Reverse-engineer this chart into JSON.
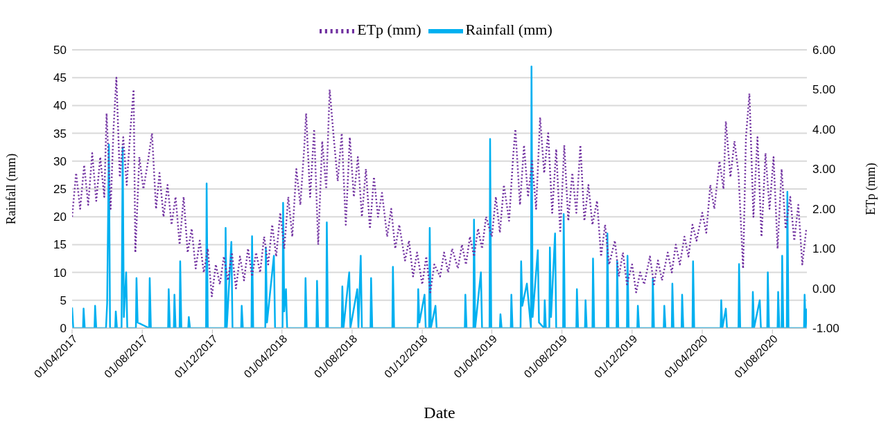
{
  "chart_data": {
    "type": "line",
    "xlabel": "Date",
    "ylabel": "Rainfall (mm)",
    "y2label": "ETp (mm)",
    "xlim": [
      "2017-04-01",
      "2020-09-30"
    ],
    "xticks": [
      {
        "value": "2017-04-01",
        "label": "01/04/2017"
      },
      {
        "value": "2017-08-01",
        "label": "01/08/2017"
      },
      {
        "value": "2017-12-01",
        "label": "01/12/2017"
      },
      {
        "value": "2018-04-01",
        "label": "01/04/2018"
      },
      {
        "value": "2018-08-01",
        "label": "01/08/2018"
      },
      {
        "value": "2018-12-01",
        "label": "01/12/2018"
      },
      {
        "value": "2019-04-01",
        "label": "01/04/2019"
      },
      {
        "value": "2019-08-01",
        "label": "01/08/2019"
      },
      {
        "value": "2019-12-01",
        "label": "01/12/2019"
      },
      {
        "value": "2020-04-01",
        "label": "01/04/2020"
      },
      {
        "value": "2020-08-01",
        "label": "01/08/2020"
      }
    ],
    "ylim": [
      0,
      50
    ],
    "yticks": [
      0,
      5,
      10,
      15,
      20,
      25,
      30,
      35,
      40,
      45,
      50
    ],
    "y2lim": [
      -1,
      6
    ],
    "y2ticks": [
      {
        "value": -1,
        "label": "-1.00"
      },
      {
        "value": 0,
        "label": "0.00"
      },
      {
        "value": 1,
        "label": "1.00"
      },
      {
        "value": 2,
        "label": "2.00"
      },
      {
        "value": 3,
        "label": "3.00"
      },
      {
        "value": 4,
        "label": "4.00"
      },
      {
        "value": 5,
        "label": "5.00"
      },
      {
        "value": 6,
        "label": "6.00"
      }
    ],
    "grid": "y",
    "legend": "top",
    "marker": "none",
    "series": [
      {
        "name": "Rainfall (mm)",
        "color": "#00b0f0",
        "line_style": "solid",
        "x": [
          "2017-04-01",
          "2017-04-03",
          "2017-04-20",
          "2017-04-21",
          "2017-04-23",
          "2017-05-10",
          "2017-05-11",
          "2017-05-13",
          "2017-05-30",
          "2017-06-01",
          "2017-06-04",
          "2017-06-06",
          "2017-06-15",
          "2017-06-16",
          "2017-06-18",
          "2017-06-26",
          "2017-06-28",
          "2017-06-30",
          "2017-07-04",
          "2017-07-06",
          "2017-07-21",
          "2017-07-22",
          "2017-07-24",
          "2017-08-13",
          "2017-08-14",
          "2017-08-16",
          "2017-09-15",
          "2017-09-16",
          "2017-09-18",
          "2017-09-25",
          "2017-09-26",
          "2017-09-28",
          "2017-10-05",
          "2017-10-06",
          "2017-10-08",
          "2017-10-20",
          "2017-10-21",
          "2017-10-23",
          "2017-11-20",
          "2017-11-21",
          "2017-11-23",
          "2017-12-23",
          "2017-12-24",
          "2017-12-26",
          "2018-01-03",
          "2018-01-05",
          "2018-01-20",
          "2018-01-21",
          "2018-01-23",
          "2018-02-07",
          "2018-02-08",
          "2018-02-10",
          "2018-03-03",
          "2018-03-04",
          "2018-03-06",
          "2018-03-18",
          "2018-03-20",
          "2018-04-02",
          "2018-04-03",
          "2018-04-05",
          "2018-04-08",
          "2018-04-10",
          "2018-05-11",
          "2018-05-12",
          "2018-05-14",
          "2018-05-31",
          "2018-06-01",
          "2018-06-03",
          "2018-06-17",
          "2018-06-18",
          "2018-06-20",
          "2018-07-14",
          "2018-07-15",
          "2018-07-17",
          "2018-07-27",
          "2018-07-29",
          "2018-08-10",
          "2018-08-12",
          "2018-08-16",
          "2018-08-18",
          "2018-09-02",
          "2018-09-03",
          "2018-09-05",
          "2018-10-10",
          "2018-10-11",
          "2018-10-13",
          "2018-11-23",
          "2018-11-24",
          "2018-11-26",
          "2018-12-05",
          "2018-12-07",
          "2018-12-13",
          "2018-12-14",
          "2018-12-16",
          "2018-12-24",
          "2018-12-26",
          "2019-02-13",
          "2019-02-14",
          "2019-02-16",
          "2019-02-28",
          "2019-03-01",
          "2019-03-03",
          "2019-03-13",
          "2019-03-15",
          "2019-03-28",
          "2019-03-29",
          "2019-03-31",
          "2019-04-15",
          "2019-04-16",
          "2019-04-18",
          "2019-05-04",
          "2019-05-05",
          "2019-05-07",
          "2019-05-21",
          "2019-05-22",
          "2019-05-24",
          "2019-06-01",
          "2019-06-08",
          "2019-06-09",
          "2019-06-11",
          "2019-06-20",
          "2019-06-22",
          "2019-07-01",
          "2019-07-02",
          "2019-07-04",
          "2019-07-10",
          "2019-07-11",
          "2019-07-13",
          "2019-07-20",
          "2019-07-22",
          "2019-08-03",
          "2019-08-04",
          "2019-08-06",
          "2019-08-26",
          "2019-08-27",
          "2019-08-29",
          "2019-09-10",
          "2019-09-11",
          "2019-09-13",
          "2019-09-23",
          "2019-09-24",
          "2019-09-26",
          "2019-10-18",
          "2019-10-19",
          "2019-10-21",
          "2019-11-04",
          "2019-11-05",
          "2019-11-07",
          "2019-11-22",
          "2019-11-23",
          "2019-11-25",
          "2019-12-10",
          "2019-12-11",
          "2019-12-13",
          "2020-01-05",
          "2020-01-06",
          "2020-01-08",
          "2020-01-25",
          "2020-01-26",
          "2020-01-28",
          "2020-02-08",
          "2020-02-09",
          "2020-02-11",
          "2020-02-25",
          "2020-02-26",
          "2020-02-28",
          "2020-03-15",
          "2020-03-16",
          "2020-03-18",
          "2020-05-03",
          "2020-05-04",
          "2020-05-06",
          "2020-05-12",
          "2020-05-14",
          "2020-06-03",
          "2020-06-04",
          "2020-06-06",
          "2020-06-27",
          "2020-06-28",
          "2020-06-30",
          "2020-07-10",
          "2020-07-12",
          "2020-07-23",
          "2020-07-24",
          "2020-07-26",
          "2020-08-10",
          "2020-08-11",
          "2020-08-13",
          "2020-08-17",
          "2020-08-18",
          "2020-08-20",
          "2020-08-26",
          "2020-08-27",
          "2020-08-29",
          "2020-09-25",
          "2020-09-26",
          "2020-09-28",
          "2020-09-30"
        ],
        "values": [
          3.7,
          0,
          0,
          3.5,
          0,
          0,
          4,
          0,
          0,
          4.5,
          33,
          0,
          0,
          3,
          0,
          0,
          32.5,
          2,
          10,
          0,
          0,
          9,
          1,
          0,
          9,
          0,
          0,
          7,
          0,
          0,
          6,
          0,
          0,
          12,
          0,
          0,
          2,
          0,
          0,
          26,
          0,
          0,
          18,
          0,
          15.5,
          0,
          0,
          4,
          0,
          0,
          16.5,
          0,
          0,
          14.5,
          1,
          13,
          0,
          0,
          22.5,
          3,
          7,
          0,
          0,
          9,
          0,
          0,
          8.5,
          0,
          0,
          19,
          0,
          0,
          7.5,
          0,
          10,
          0,
          7,
          0,
          13,
          0,
          0,
          9,
          0,
          0,
          11,
          0,
          0,
          7,
          1,
          6,
          0,
          0,
          18,
          0,
          4,
          0,
          0,
          6,
          0,
          0,
          19.5,
          0,
          10,
          0,
          0,
          34,
          0,
          0,
          2.5,
          0,
          0,
          6,
          0,
          0,
          12,
          4,
          8,
          0,
          47,
          2,
          14,
          1,
          0,
          5,
          0,
          0,
          14.5,
          2,
          17,
          0,
          0,
          20.5,
          0,
          0,
          7,
          0,
          0,
          5,
          0,
          0,
          12.5,
          0,
          0,
          17,
          0,
          0,
          12,
          0,
          0,
          13,
          0,
          0,
          4,
          0,
          0,
          9,
          0,
          0,
          4,
          0,
          0,
          8,
          0,
          0,
          6,
          0,
          0,
          12,
          0,
          0,
          5,
          0,
          3.5,
          0,
          0,
          11.5,
          0,
          0,
          6.5,
          0,
          5,
          0,
          0,
          10,
          0,
          0,
          6.5,
          0,
          0,
          13,
          0,
          0,
          24.5,
          0,
          0,
          6,
          0,
          3.5
        ]
      },
      {
        "name": "ETp (mm)",
        "color": "#7030a0",
        "line_style": "dotted",
        "axis": "y2",
        "x": [
          "2017-04-01",
          "2017-04-08",
          "2017-04-15",
          "2017-04-22",
          "2017-04-29",
          "2017-05-06",
          "2017-05-13",
          "2017-05-20",
          "2017-05-27",
          "2017-05-31",
          "2017-06-07",
          "2017-06-12",
          "2017-06-17",
          "2017-06-23",
          "2017-06-29",
          "2017-07-05",
          "2017-07-12",
          "2017-07-17",
          "2017-07-20",
          "2017-07-27",
          "2017-08-03",
          "2017-08-10",
          "2017-08-18",
          "2017-08-25",
          "2017-08-31",
          "2017-09-07",
          "2017-09-14",
          "2017-09-21",
          "2017-09-28",
          "2017-10-05",
          "2017-10-12",
          "2017-10-19",
          "2017-10-26",
          "2017-11-02",
          "2017-11-09",
          "2017-11-16",
          "2017-11-23",
          "2017-11-30",
          "2017-12-07",
          "2017-12-14",
          "2017-12-21",
          "2017-12-28",
          "2018-01-04",
          "2018-01-11",
          "2018-01-18",
          "2018-01-25",
          "2018-02-01",
          "2018-02-08",
          "2018-02-15",
          "2018-02-22",
          "2018-03-01",
          "2018-03-08",
          "2018-03-15",
          "2018-03-22",
          "2018-03-29",
          "2018-04-05",
          "2018-04-12",
          "2018-04-19",
          "2018-04-26",
          "2018-05-03",
          "2018-05-10",
          "2018-05-13",
          "2018-05-20",
          "2018-05-27",
          "2018-06-03",
          "2018-06-10",
          "2018-06-17",
          "2018-06-23",
          "2018-06-30",
          "2018-07-07",
          "2018-07-14",
          "2018-07-21",
          "2018-07-28",
          "2018-08-04",
          "2018-08-11",
          "2018-08-18",
          "2018-08-25",
          "2018-09-01",
          "2018-09-08",
          "2018-09-15",
          "2018-09-22",
          "2018-10-01",
          "2018-10-08",
          "2018-10-15",
          "2018-10-22",
          "2018-11-01",
          "2018-11-08",
          "2018-11-15",
          "2018-11-22",
          "2018-12-01",
          "2018-12-08",
          "2018-12-15",
          "2018-12-22",
          "2019-01-01",
          "2019-01-08",
          "2019-01-15",
          "2019-01-22",
          "2019-02-01",
          "2019-02-08",
          "2019-02-15",
          "2019-02-22",
          "2019-03-01",
          "2019-03-08",
          "2019-03-15",
          "2019-03-22",
          "2019-04-01",
          "2019-04-08",
          "2019-04-15",
          "2019-04-22",
          "2019-05-01",
          "2019-05-08",
          "2019-05-12",
          "2019-05-20",
          "2019-05-27",
          "2019-06-03",
          "2019-06-10",
          "2019-06-17",
          "2019-06-24",
          "2019-07-01",
          "2019-07-08",
          "2019-07-15",
          "2019-07-22",
          "2019-07-29",
          "2019-08-05",
          "2019-08-12",
          "2019-08-19",
          "2019-08-26",
          "2019-09-02",
          "2019-09-09",
          "2019-09-16",
          "2019-09-23",
          "2019-10-01",
          "2019-10-08",
          "2019-10-15",
          "2019-10-22",
          "2019-11-01",
          "2019-11-08",
          "2019-11-15",
          "2019-11-22",
          "2019-12-01",
          "2019-12-08",
          "2019-12-15",
          "2019-12-22",
          "2020-01-01",
          "2020-01-08",
          "2020-01-15",
          "2020-01-22",
          "2020-02-01",
          "2020-02-08",
          "2020-02-15",
          "2020-02-22",
          "2020-03-01",
          "2020-03-08",
          "2020-03-15",
          "2020-03-22",
          "2020-04-01",
          "2020-04-08",
          "2020-04-15",
          "2020-04-22",
          "2020-05-01",
          "2020-05-08",
          "2020-05-12",
          "2020-05-20",
          "2020-05-27",
          "2020-06-03",
          "2020-06-11",
          "2020-06-16",
          "2020-06-22",
          "2020-06-29",
          "2020-07-06",
          "2020-07-13",
          "2020-07-20",
          "2020-07-27",
          "2020-08-03",
          "2020-08-10",
          "2020-08-17",
          "2020-08-24",
          "2020-09-01",
          "2020-09-08",
          "2020-09-15",
          "2020-09-22",
          "2020-09-29"
        ],
        "values": [
          1.8,
          2.9,
          2.0,
          3.1,
          2.1,
          3.4,
          2.2,
          3.3,
          2.3,
          4.4,
          2.0,
          4.0,
          5.3,
          2.8,
          3.8,
          2.6,
          4.1,
          5.0,
          0.9,
          3.3,
          2.5,
          3.1,
          3.9,
          2.0,
          2.9,
          1.8,
          2.6,
          1.6,
          2.3,
          1.1,
          2.3,
          0.9,
          1.5,
          0.5,
          1.2,
          0.4,
          1.0,
          -0.2,
          0.6,
          0.1,
          0.8,
          0.2,
          0.9,
          0.0,
          0.8,
          0.2,
          1.0,
          0.3,
          0.9,
          0.4,
          1.3,
          0.6,
          1.6,
          0.8,
          1.9,
          1.0,
          2.3,
          1.3,
          3.0,
          2.1,
          3.6,
          4.4,
          2.3,
          4.0,
          1.1,
          3.7,
          2.5,
          5.0,
          3.8,
          2.7,
          3.9,
          1.6,
          3.8,
          2.3,
          3.3,
          1.8,
          3.0,
          1.5,
          2.8,
          1.8,
          2.4,
          1.3,
          2.0,
          1.0,
          1.6,
          0.7,
          1.2,
          0.3,
          0.9,
          0.1,
          0.8,
          -0.1,
          0.6,
          0.3,
          0.9,
          0.4,
          1.0,
          0.5,
          1.1,
          0.6,
          1.3,
          0.8,
          1.5,
          1.0,
          1.8,
          1.3,
          2.3,
          1.4,
          2.6,
          1.7,
          3.3,
          4.0,
          2.1,
          3.6,
          2.3,
          3.2,
          2.0,
          4.3,
          2.9,
          3.9,
          1.9,
          3.5,
          1.4,
          3.6,
          1.7,
          2.9,
          1.9,
          3.6,
          1.7,
          2.6,
          1.6,
          2.2,
          0.8,
          1.6,
          0.6,
          1.2,
          0.3,
          0.9,
          0.1,
          0.6,
          -0.1,
          0.4,
          0.1,
          0.8,
          0.1,
          0.7,
          0.2,
          0.9,
          0.4,
          1.1,
          0.6,
          1.3,
          0.8,
          1.6,
          1.2,
          1.9,
          1.4,
          2.6,
          2.0,
          3.2,
          2.5,
          4.2,
          2.8,
          3.7,
          2.9,
          0.5,
          3.8,
          4.9,
          1.8,
          3.8,
          1.3,
          3.4,
          2.0,
          3.3,
          1.0,
          3.0,
          1.5,
          2.3,
          1.2,
          2.1,
          0.6,
          1.5
        ]
      }
    ]
  }
}
